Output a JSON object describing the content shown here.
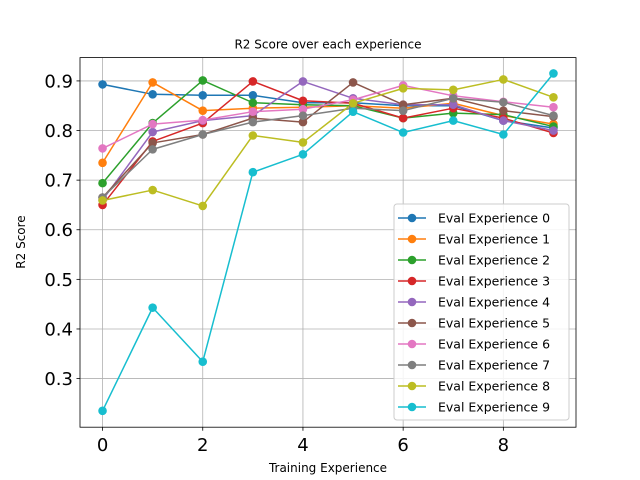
{
  "chart_data": {
    "type": "line",
    "title": "R2 Score over each experience",
    "xlabel": "Training Experience",
    "ylabel": "R2 Score",
    "x": [
      0,
      1,
      2,
      3,
      4,
      5,
      6,
      7,
      8,
      9
    ],
    "xlim": [
      -0.45,
      9.45
    ],
    "ylim": [
      0.202,
      0.947
    ],
    "xticks": [
      0,
      2,
      4,
      6,
      8
    ],
    "yticks": [
      0.3,
      0.4,
      0.5,
      0.6,
      0.7,
      0.8,
      0.9
    ],
    "xtick_labels": [
      "0",
      "2",
      "4",
      "6",
      "8"
    ],
    "ytick_labels": [
      "0.3",
      "0.4",
      "0.5",
      "0.6",
      "0.7",
      "0.8",
      "0.9"
    ],
    "grid": true,
    "legend_position": "lower-right",
    "series": [
      {
        "name": "Eval Experience 0",
        "color": "#1f77b4",
        "values": [
          0.893,
          0.873,
          0.871,
          0.871,
          0.856,
          0.856,
          0.85,
          0.85,
          0.82,
          0.805
        ]
      },
      {
        "name": "Eval Experience 1",
        "color": "#ff7f0e",
        "values": [
          0.735,
          0.897,
          0.84,
          0.845,
          0.847,
          0.85,
          0.845,
          0.855,
          0.83,
          0.813
        ]
      },
      {
        "name": "Eval Experience 2",
        "color": "#2ca02c",
        "values": [
          0.694,
          0.815,
          0.901,
          0.856,
          0.852,
          0.85,
          0.825,
          0.835,
          0.832,
          0.808
        ]
      },
      {
        "name": "Eval Experience 3",
        "color": "#d62728",
        "values": [
          0.65,
          0.778,
          0.815,
          0.899,
          0.86,
          0.855,
          0.825,
          0.845,
          0.825,
          0.795
        ]
      },
      {
        "name": "Eval Experience 4",
        "color": "#9467bd",
        "values": [
          0.66,
          0.797,
          0.82,
          0.83,
          0.899,
          0.865,
          0.852,
          0.852,
          0.82,
          0.8
        ]
      },
      {
        "name": "Eval Experience 5",
        "color": "#8c564b",
        "values": [
          0.665,
          0.775,
          0.792,
          0.825,
          0.817,
          0.897,
          0.852,
          0.865,
          0.84,
          0.828
        ]
      },
      {
        "name": "Eval Experience 6",
        "color": "#e377c2",
        "values": [
          0.764,
          0.813,
          0.821,
          0.838,
          0.843,
          0.862,
          0.891,
          0.87,
          0.858,
          0.847
        ]
      },
      {
        "name": "Eval Experience 7",
        "color": "#7f7f7f",
        "values": [
          0.665,
          0.762,
          0.792,
          0.817,
          0.83,
          0.845,
          0.84,
          0.865,
          0.857,
          0.83
        ]
      },
      {
        "name": "Eval Experience 8",
        "color": "#bcbd22",
        "values": [
          0.659,
          0.68,
          0.648,
          0.79,
          0.776,
          0.855,
          0.885,
          0.882,
          0.903,
          0.867
        ]
      },
      {
        "name": "Eval Experience 9",
        "color": "#17becf",
        "values": [
          0.235,
          0.443,
          0.334,
          0.716,
          0.752,
          0.838,
          0.796,
          0.82,
          0.792,
          0.915
        ]
      }
    ]
  }
}
